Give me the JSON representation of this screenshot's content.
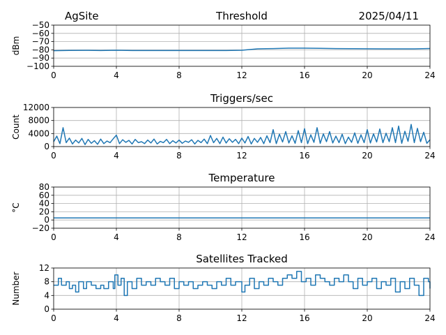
{
  "header": {
    "site": "AgSite",
    "date": "2025/04/11"
  },
  "colors": {
    "series": "#1f77b4",
    "grid": "#b0b0b0"
  },
  "chart_data": [
    {
      "type": "line",
      "title": "Threshold",
      "ylabel": "dBm",
      "xlabel": "",
      "xlim": [
        0,
        24
      ],
      "ylim": [
        -100,
        -50
      ],
      "xticks": [
        0,
        4,
        8,
        12,
        16,
        20,
        24
      ],
      "yticks": [
        -100,
        -90,
        -80,
        -70,
        -60,
        -50
      ],
      "ytick_labels": [
        "−100",
        "−90",
        "−80",
        "−70",
        "−60",
        "−50"
      ],
      "grid": true,
      "series": [
        {
          "x": [
            0,
            1,
            2,
            3,
            4,
            5,
            6,
            7,
            8,
            9,
            10,
            11,
            12,
            13,
            14,
            15,
            16,
            17,
            18,
            19,
            20,
            21,
            22,
            23,
            24
          ],
          "values": [
            -81,
            -80.7,
            -80.6,
            -80.8,
            -80.5,
            -80.8,
            -80.8,
            -80.8,
            -80.8,
            -80.8,
            -80.8,
            -80.8,
            -80.5,
            -78.8,
            -78.5,
            -78,
            -78,
            -78.2,
            -78.5,
            -78.6,
            -78.7,
            -78.8,
            -78.8,
            -78.8,
            -78.4
          ]
        }
      ]
    },
    {
      "type": "line",
      "title": "Triggers/sec",
      "ylabel": "Count",
      "xlabel": "",
      "xlim": [
        0,
        24
      ],
      "ylim": [
        0,
        12000
      ],
      "xticks": [
        0,
        4,
        8,
        12,
        16,
        20,
        24
      ],
      "yticks": [
        0,
        4000,
        8000,
        12000
      ],
      "ytick_labels": [
        "0",
        "4000",
        "8000",
        "12000"
      ],
      "grid": true,
      "series": [
        {
          "x": [
            0,
            0.2,
            0.4,
            0.6,
            0.8,
            1,
            1.2,
            1.4,
            1.6,
            1.8,
            2,
            2.2,
            2.4,
            2.6,
            2.8,
            3,
            3.2,
            3.4,
            3.6,
            3.8,
            4,
            4.2,
            4.4,
            4.6,
            4.8,
            5,
            5.2,
            5.4,
            5.6,
            5.8,
            6,
            6.2,
            6.4,
            6.6,
            6.8,
            7,
            7.2,
            7.4,
            7.6,
            7.8,
            8,
            8.2,
            8.4,
            8.6,
            8.8,
            9,
            9.2,
            9.4,
            9.6,
            9.8,
            10,
            10.2,
            10.4,
            10.6,
            10.8,
            11,
            11.2,
            11.4,
            11.6,
            11.8,
            12,
            12.2,
            12.4,
            12.6,
            12.8,
            13,
            13.2,
            13.4,
            13.6,
            13.8,
            14,
            14.2,
            14.4,
            14.6,
            14.8,
            15,
            15.2,
            15.4,
            15.6,
            15.8,
            16,
            16.2,
            16.4,
            16.6,
            16.8,
            17,
            17.2,
            17.4,
            17.6,
            17.8,
            18,
            18.2,
            18.4,
            18.6,
            18.8,
            19,
            19.2,
            19.4,
            19.6,
            19.8,
            20,
            20.2,
            20.4,
            20.6,
            20.8,
            21,
            21.2,
            21.4,
            21.6,
            21.8,
            22,
            22.2,
            22.4,
            22.6,
            22.8,
            23,
            23.2,
            23.4,
            23.6,
            23.8,
            24
          ],
          "values": [
            1500,
            3200,
            900,
            5800,
            1200,
            2600,
            800,
            2000,
            1100,
            2500,
            600,
            2200,
            1000,
            1800,
            700,
            2300,
            900,
            1700,
            1200,
            2400,
            3500,
            900,
            2100,
            1300,
            1900,
            800,
            2200,
            1200,
            1500,
            900,
            2000,
            1100,
            2300,
            800,
            1600,
            1200,
            2200,
            900,
            1800,
            1100,
            2000,
            1000,
            1700,
            1300,
            2100,
            800,
            1900,
            1200,
            2300,
            900,
            3400,
            1200,
            2500,
            900,
            2900,
            1100,
            2400,
            1300,
            2200,
            900,
            2600,
            1100,
            3100,
            800,
            2500,
            1300,
            2800,
            900,
            3300,
            1200,
            5200,
            900,
            3800,
            1400,
            4600,
            1100,
            3300,
            1000,
            4900,
            1200,
            5500,
            900,
            3600,
            1300,
            5800,
            1000,
            3900,
            1500,
            4600,
            1100,
            3200,
            1200,
            3800,
            900,
            2900,
            1300,
            4200,
            1000,
            3600,
            1200,
            5200,
            1100,
            3900,
            1400,
            5400,
            1200,
            4100,
            1500,
            5800,
            1200,
            6300,
            1000,
            4700,
            1600,
            6800,
            1200,
            5600,
            1500,
            4400,
            1000,
            2100
          ]
        }
      ]
    },
    {
      "type": "line",
      "title": "Temperature",
      "ylabel": "°C",
      "xlabel": "",
      "xlim": [
        0,
        24
      ],
      "ylim": [
        -20,
        80
      ],
      "xticks": [
        0,
        4,
        8,
        12,
        16,
        20,
        24
      ],
      "yticks": [
        -20,
        0,
        20,
        40,
        60,
        80
      ],
      "ytick_labels": [
        "−20",
        "0",
        "20",
        "40",
        "60",
        "80"
      ],
      "grid": true,
      "series": [
        {
          "x": [
            0,
            24
          ],
          "values": [
            5,
            5
          ]
        }
      ]
    },
    {
      "type": "line",
      "title": "Satellites Tracked",
      "ylabel": "Number",
      "xlabel": "",
      "xlim": [
        0,
        24
      ],
      "ylim": [
        0,
        12
      ],
      "xticks": [
        0,
        4,
        8,
        12,
        16,
        20,
        24
      ],
      "yticks": [
        0,
        4,
        8,
        12
      ],
      "ytick_labels": [
        "0",
        "4",
        "8",
        "12"
      ],
      "grid": true,
      "series": [
        {
          "step": true,
          "x": [
            0,
            0.3,
            0.5,
            0.8,
            1,
            1.2,
            1.4,
            1.6,
            1.9,
            2.1,
            2.4,
            2.7,
            3,
            3.2,
            3.5,
            3.8,
            3.9,
            4.1,
            4.3,
            4.5,
            4.7,
            5,
            5.3,
            5.6,
            5.9,
            6.2,
            6.5,
            6.8,
            7.1,
            7.4,
            7.7,
            8,
            8.3,
            8.6,
            8.9,
            9.2,
            9.5,
            9.8,
            10.1,
            10.4,
            10.7,
            11,
            11.3,
            11.6,
            12,
            12.2,
            12.5,
            12.8,
            13.1,
            13.4,
            13.7,
            14,
            14.3,
            14.6,
            14.9,
            15.2,
            15.5,
            15.8,
            16.1,
            16.4,
            16.7,
            17,
            17.3,
            17.6,
            17.9,
            18.2,
            18.5,
            18.8,
            19.1,
            19.4,
            19.7,
            20,
            20.3,
            20.6,
            20.9,
            21.2,
            21.5,
            21.8,
            22.1,
            22.4,
            22.7,
            23,
            23.3,
            23.6,
            23.9,
            24
          ],
          "values": [
            7,
            9,
            7,
            8,
            6,
            7,
            5,
            8,
            6,
            8,
            7,
            6,
            7,
            6,
            8,
            6,
            10,
            7,
            9,
            4,
            8,
            6,
            9,
            7,
            8,
            7,
            9,
            8,
            7,
            9,
            6,
            8,
            7,
            8,
            6,
            7,
            8,
            7,
            6,
            8,
            7,
            9,
            7,
            8,
            5,
            7,
            9,
            6,
            8,
            7,
            9,
            8,
            7,
            9,
            10,
            9,
            11,
            8,
            9,
            7,
            10,
            9,
            8,
            7,
            9,
            8,
            10,
            8,
            6,
            9,
            7,
            8,
            9,
            6,
            8,
            7,
            9,
            5,
            8,
            6,
            9,
            7,
            4,
            9,
            8,
            6
          ]
        }
      ]
    }
  ]
}
